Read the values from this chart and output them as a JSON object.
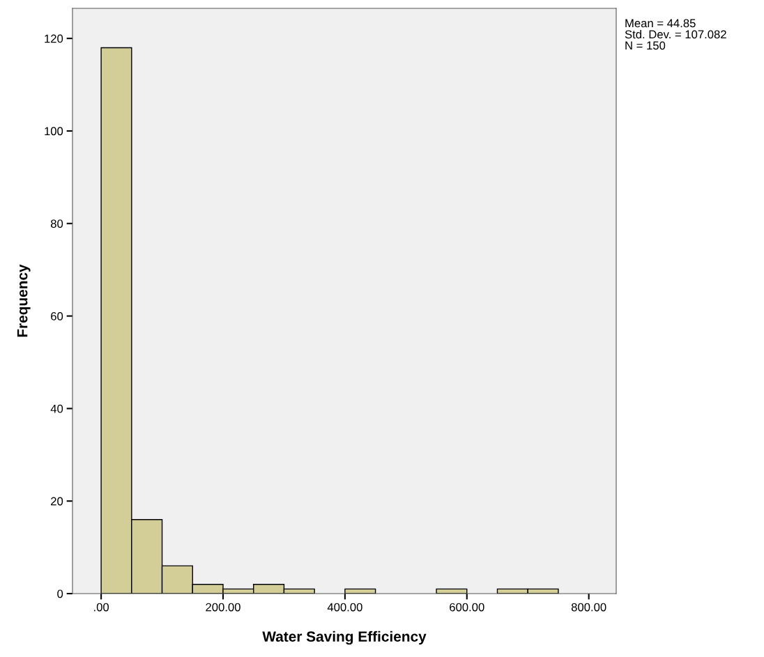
{
  "chart_data": {
    "type": "histogram",
    "xlabel": "Water Saving Efficiency",
    "ylabel": "Frequency",
    "bins": [
      0,
      50,
      100,
      150,
      200,
      250,
      300,
      350,
      400,
      450,
      500,
      550,
      600,
      650,
      700,
      750
    ],
    "values": [
      118,
      16,
      6,
      2,
      1,
      2,
      1,
      0,
      1,
      0,
      0,
      1,
      0,
      1,
      1
    ],
    "color": "#d3ce97",
    "xlim": [
      -47,
      845
    ],
    "ylim": [
      0,
      126.5
    ],
    "xticks": [
      {
        "value": 0,
        "label": ".00"
      },
      {
        "value": 200,
        "label": "200.00"
      },
      {
        "value": 400,
        "label": "400.00"
      },
      {
        "value": 600,
        "label": "600.00"
      },
      {
        "value": 800,
        "label": "800.00"
      }
    ],
    "yticks": [
      0,
      20,
      40,
      60,
      80,
      100,
      120
    ],
    "annotations": [
      "Mean = 44.85",
      "Std. Dev. = 107.082",
      "N = 150"
    ],
    "grid": false
  }
}
